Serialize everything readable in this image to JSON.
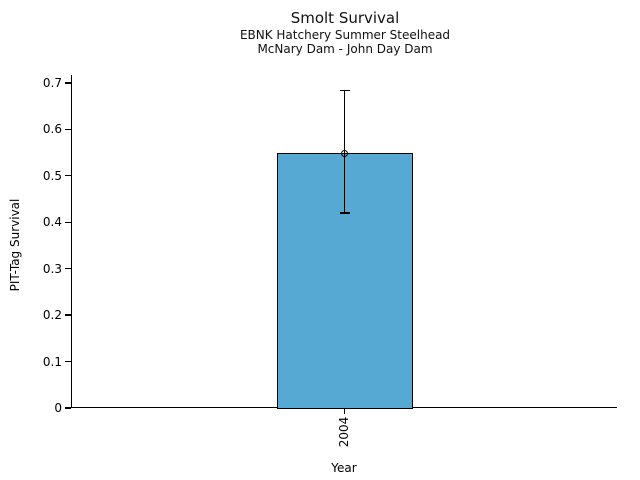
{
  "chart_data": {
    "type": "bar",
    "title": "Smolt Survival",
    "subtitle1": "EBNK Hatchery Summer Steelhead",
    "subtitle2": "McNary Dam - John Day Dam",
    "xlabel": "Year",
    "ylabel": "PIT-Tag Survival",
    "categories": [
      "2004"
    ],
    "values": [
      0.549
    ],
    "error_low": [
      0.42
    ],
    "error_high": [
      0.683
    ],
    "ylim": [
      0,
      0.717
    ],
    "yticks": [
      0,
      0.1,
      0.2,
      0.3,
      0.4,
      0.5,
      0.6,
      0.7
    ],
    "ytick_labels": [
      "0",
      "0.1",
      "0.2",
      "0.3",
      "0.4",
      "0.5",
      "0.6",
      "0.7"
    ],
    "bar_color": "#55A9D2",
    "edge_color": "#000000",
    "marker": "open-circle",
    "grid": false,
    "legend": null
  }
}
